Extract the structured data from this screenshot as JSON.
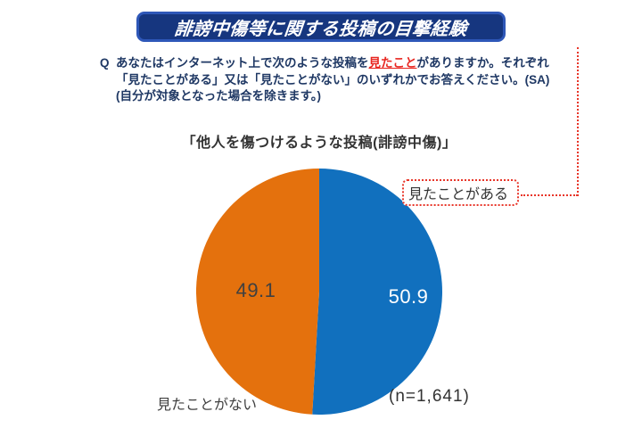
{
  "header": {
    "title": "誹謗中傷等に関する投稿の目撃経験",
    "bg_color": "#16367F",
    "border_color": "#2E57B8",
    "text_color": "#FFFFFF"
  },
  "question": {
    "marker": "Q",
    "text_before_highlight": "あなたはインターネット上で次のような投稿を",
    "highlight": "見たこと",
    "text_after_highlight": "がありますか。それぞれ「見たことがある」又は「見たことがない」のいずれかでお答えください。(SA)",
    "note": "(自分が対象となった場合を除きます。)",
    "text_color": "#1F3864",
    "highlight_color": "#E8251F"
  },
  "chart_data": {
    "type": "pie",
    "title": "「他人を傷つけるような投稿(誹謗中傷)」",
    "labels": [
      "見たことがある",
      "見たことがない"
    ],
    "values": [
      50.9,
      49.1
    ],
    "colors": [
      "#1170BE",
      "#E4710D"
    ],
    "value_label_colors": [
      "#FFFFFF",
      "#404040"
    ],
    "start_angle_deg": 0,
    "direction": "clockwise",
    "sample_size_label": "(n=1,641)",
    "legend_position": "callout-right"
  },
  "annotations": {
    "callout_label": "見たことがある",
    "callout_border_color": "#E8362A"
  }
}
